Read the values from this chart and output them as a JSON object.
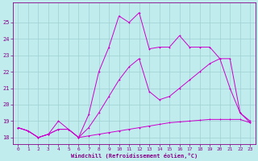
{
  "xlabel": "Windchill (Refroidissement éolien,°C)",
  "background_color": "#c0ecee",
  "grid_color": "#a0d0d4",
  "line_color": "#cc00cc",
  "spine_color": "#880088",
  "tick_color": "#880088",
  "xlim_min": -0.5,
  "xlim_max": 23.5,
  "ylim_min": 17.6,
  "ylim_max": 26.2,
  "xticks": [
    0,
    1,
    2,
    3,
    4,
    5,
    6,
    7,
    8,
    9,
    10,
    11,
    12,
    13,
    14,
    15,
    16,
    17,
    18,
    19,
    20,
    21,
    22,
    23
  ],
  "yticks": [
    18,
    19,
    20,
    21,
    22,
    23,
    24,
    25
  ],
  "line1_x": [
    0,
    1,
    2,
    3,
    4,
    5,
    6,
    7,
    8,
    9,
    10,
    11,
    12,
    13,
    14,
    15,
    16,
    17,
    18,
    19,
    20,
    21,
    22,
    23
  ],
  "line1_y": [
    18.6,
    18.4,
    18.0,
    18.2,
    18.5,
    18.5,
    18.0,
    18.1,
    18.2,
    18.3,
    18.4,
    18.5,
    18.6,
    18.7,
    18.8,
    18.9,
    18.95,
    19.0,
    19.05,
    19.1,
    19.1,
    19.1,
    19.1,
    18.9
  ],
  "line2_x": [
    0,
    1,
    2,
    3,
    4,
    5,
    6,
    7,
    8,
    9,
    10,
    11,
    12,
    13,
    14,
    15,
    16,
    17,
    18,
    19,
    20,
    21,
    22,
    23
  ],
  "line2_y": [
    18.6,
    18.4,
    18.0,
    18.2,
    18.5,
    18.5,
    18.0,
    18.6,
    19.5,
    20.5,
    21.5,
    22.3,
    22.8,
    20.8,
    20.3,
    20.5,
    21.0,
    21.5,
    22.0,
    22.5,
    22.8,
    22.8,
    19.5,
    19.0
  ],
  "line3_x": [
    0,
    1,
    2,
    3,
    4,
    5,
    6,
    7,
    8,
    9,
    10,
    11,
    12,
    13,
    14,
    15,
    16,
    17,
    18,
    19,
    20,
    21,
    22,
    23
  ],
  "line3_y": [
    18.6,
    18.4,
    18.0,
    18.2,
    19.0,
    18.5,
    18.0,
    19.4,
    22.0,
    23.5,
    25.4,
    25.0,
    25.6,
    23.4,
    23.5,
    23.5,
    24.2,
    23.5,
    23.5,
    23.5,
    22.8,
    21.0,
    19.5,
    18.9
  ]
}
